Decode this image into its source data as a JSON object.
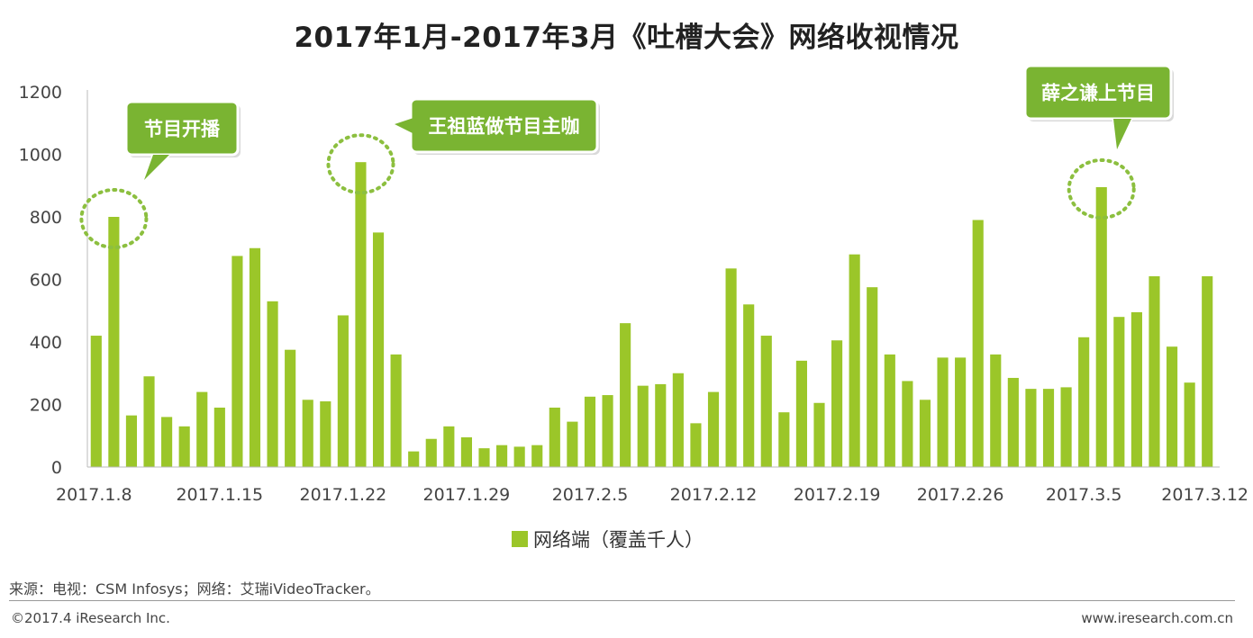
{
  "colors": {
    "bar": "#9bc629",
    "callout": "#7ab432",
    "axis": "#bbbbbb",
    "highlight_ring": "#8cbf3f"
  },
  "chart_data": {
    "type": "bar",
    "title": "2017年1月-2017年3月《吐槽大会》网络收视情况",
    "ylim": [
      0,
      1200
    ],
    "yticks": [
      0,
      200,
      400,
      600,
      800,
      1000,
      1200
    ],
    "xtick_labels": [
      "2017.1.8",
      "2017.1.15",
      "2017.1.22",
      "2017.1.29",
      "2017.2.5",
      "2017.2.12",
      "2017.2.19",
      "2017.2.26",
      "2017.3.5",
      "2017.3.12"
    ],
    "xtick_indices": [
      0,
      7,
      14,
      21,
      28,
      35,
      42,
      49,
      56,
      63
    ],
    "series": [
      {
        "name": "网络端（覆盖千人）",
        "values": [
          420,
          800,
          165,
          290,
          160,
          130,
          240,
          190,
          675,
          700,
          530,
          375,
          215,
          210,
          485,
          975,
          750,
          360,
          50,
          90,
          130,
          95,
          60,
          70,
          65,
          70,
          190,
          145,
          225,
          230,
          460,
          260,
          265,
          300,
          140,
          240,
          635,
          520,
          420,
          175,
          340,
          205,
          405,
          680,
          575,
          360,
          275,
          215,
          350,
          350,
          790,
          360,
          285,
          250,
          250,
          255,
          415,
          895,
          480,
          495,
          610,
          385,
          270,
          610
        ]
      }
    ],
    "annotations": [
      {
        "text": "节目开播",
        "index": 1
      },
      {
        "text": "王祖蓝做节目主咖",
        "index": 15
      },
      {
        "text": "薛之谦上节目",
        "index": 57
      }
    ]
  },
  "source": "来源：电视：CSM Infosys；网络：艾瑞iVideoTracker。",
  "copyright": "©2017.4 iResearch Inc.",
  "website": "www.iresearch.com.cn"
}
